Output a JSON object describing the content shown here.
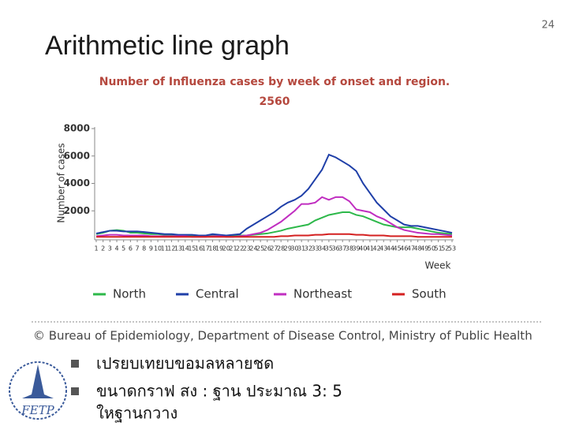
{
  "slide": {
    "title": "Arithmetic line graph",
    "page_number": "24",
    "credit": "© Bureau of Epidemiology, Department of Disease Control, Ministry of Public Health",
    "bullets": [
      "เปรยบเทยบขอมลหลายชด",
      "ขนาดกราฟ สง  : ฐาน ประมาณ 3: 5",
      "ใหฐานกวาง"
    ],
    "logo_text": "FETP"
  },
  "chart_data": {
    "type": "line",
    "title": "Number of Influenza cases by week of onset and region.",
    "subtitle": "2560",
    "y_label": "Number of cases",
    "x_label": "Week",
    "x": [
      1,
      2,
      3,
      4,
      5,
      6,
      7,
      8,
      9,
      10,
      11,
      12,
      13,
      14,
      15,
      16,
      17,
      18,
      19,
      20,
      21,
      22,
      23,
      24,
      25,
      26,
      27,
      28,
      29,
      30,
      31,
      32,
      33,
      34,
      35,
      36,
      37,
      38,
      39,
      40,
      41,
      42,
      43,
      44,
      45,
      46,
      47,
      48,
      49,
      50,
      51,
      52,
      53
    ],
    "xlim": [
      1,
      53
    ],
    "xticks": [
      1,
      2,
      3,
      4,
      5,
      6,
      7,
      8,
      9,
      10,
      11,
      12,
      13,
      14,
      15,
      16,
      17,
      18,
      19,
      20,
      21,
      22,
      23,
      24,
      25,
      26,
      27,
      28,
      29,
      30,
      31,
      32,
      33,
      34,
      35,
      36,
      37,
      38,
      39,
      40,
      41,
      42,
      43,
      44,
      45,
      46,
      47,
      48,
      49,
      50,
      51,
      52,
      53
    ],
    "ylim": [
      0,
      8000
    ],
    "yticks": [
      2000,
      4000,
      6000,
      8000
    ],
    "series": [
      {
        "name": "North",
        "color": "#2db84a",
        "values": [
          300,
          400,
          550,
          600,
          550,
          400,
          400,
          350,
          300,
          300,
          250,
          250,
          200,
          200,
          200,
          150,
          150,
          200,
          200,
          150,
          150,
          200,
          200,
          250,
          300,
          350,
          450,
          550,
          700,
          800,
          900,
          1000,
          1300,
          1500,
          1700,
          1800,
          1900,
          1900,
          1700,
          1600,
          1400,
          1200,
          1000,
          900,
          800,
          800,
          800,
          700,
          600,
          500,
          400,
          350,
          300
        ]
      },
      {
        "name": "Central",
        "color": "#1f3fa8",
        "values": [
          350,
          450,
          550,
          550,
          500,
          500,
          500,
          450,
          400,
          350,
          300,
          300,
          250,
          250,
          250,
          200,
          200,
          300,
          250,
          200,
          250,
          300,
          700,
          1000,
          1300,
          1600,
          1900,
          2300,
          2600,
          2800,
          3100,
          3600,
          4300,
          5000,
          6100,
          5900,
          5600,
          5300,
          4900,
          4000,
          3300,
          2600,
          2100,
          1600,
          1300,
          1000,
          900,
          900,
          800,
          700,
          600,
          500,
          400
        ]
      },
      {
        "name": "Northeast",
        "color": "#c02ec0",
        "values": [
          150,
          200,
          250,
          250,
          200,
          200,
          200,
          200,
          150,
          150,
          150,
          150,
          150,
          150,
          100,
          100,
          100,
          150,
          150,
          100,
          100,
          150,
          200,
          300,
          400,
          600,
          900,
          1200,
          1600,
          2000,
          2500,
          2500,
          2600,
          3000,
          2800,
          3000,
          3000,
          2700,
          2100,
          2000,
          1900,
          1600,
          1400,
          1100,
          800,
          600,
          500,
          400,
          350,
          300,
          300,
          250,
          200
        ]
      },
      {
        "name": "South",
        "color": "#d42020",
        "values": [
          100,
          100,
          100,
          100,
          100,
          100,
          100,
          100,
          100,
          100,
          100,
          100,
          100,
          100,
          100,
          100,
          100,
          100,
          100,
          100,
          100,
          100,
          100,
          100,
          100,
          100,
          100,
          150,
          150,
          200,
          200,
          200,
          250,
          250,
          300,
          300,
          300,
          300,
          250,
          250,
          200,
          200,
          200,
          150,
          150,
          150,
          150,
          100,
          100,
          100,
          100,
          100,
          100
        ]
      }
    ]
  }
}
